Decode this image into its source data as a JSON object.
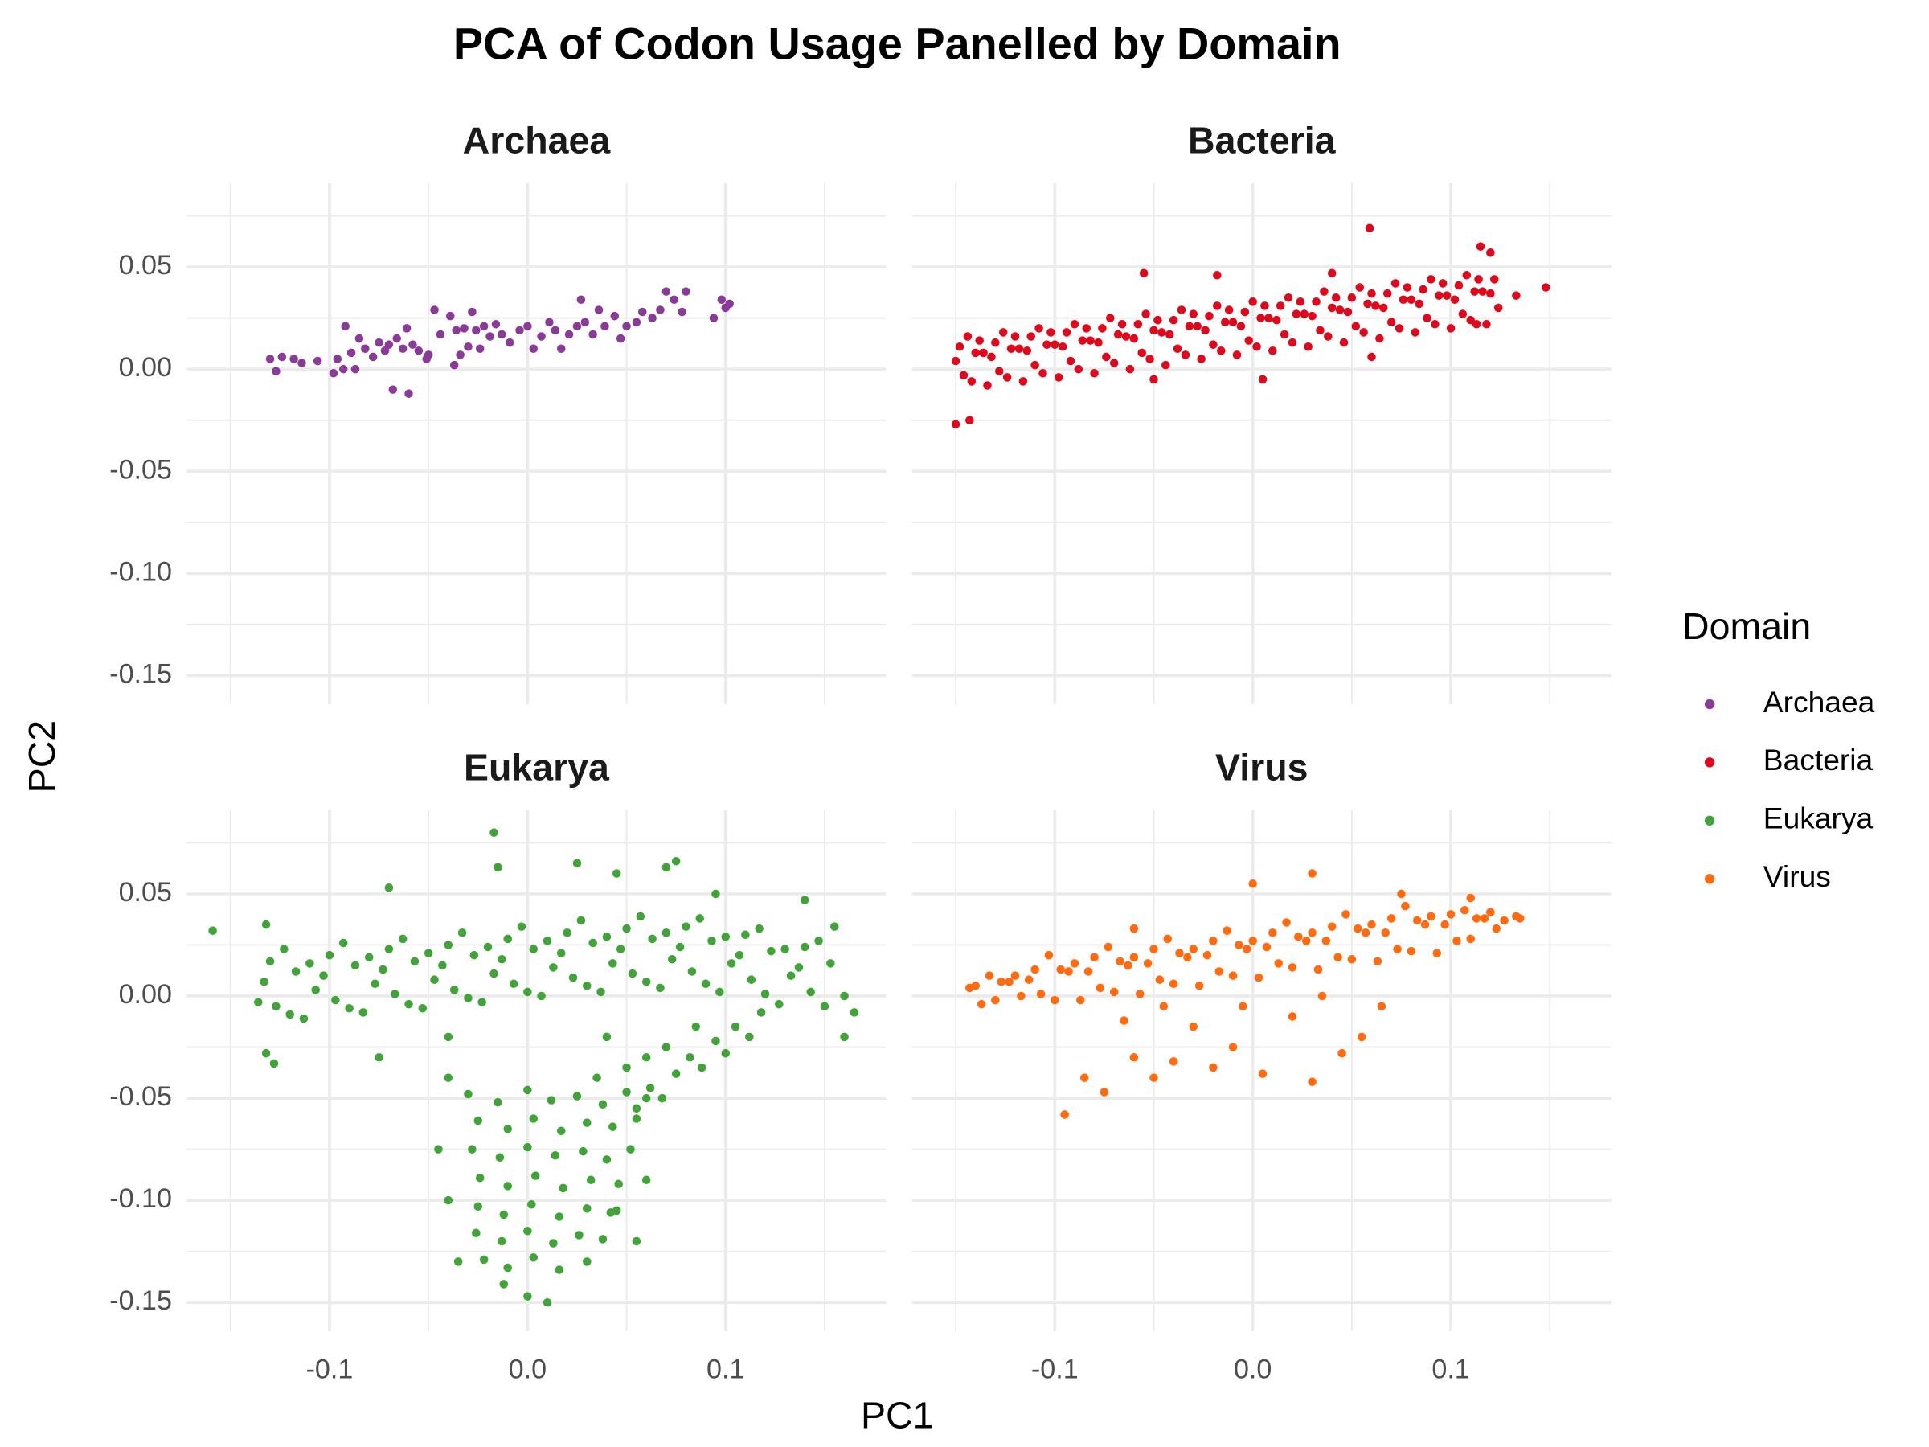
{
  "chart_data": {
    "type": "scatter",
    "title": "PCA of Codon Usage Panelled by Domain",
    "xlabel": "PC1",
    "ylabel": "PC2",
    "legend_title": "Domain",
    "legend_position": "right",
    "grid": true,
    "xlim": [
      -0.172,
      0.181
    ],
    "ylim": [
      -0.164,
      0.091
    ],
    "xticks": [
      -0.1,
      {
        "value": 0,
        "label": "0.0"
      },
      0.1
    ],
    "yticks": [
      -0.15,
      {
        "value": -0.1,
        "label": "-0.10"
      },
      -0.05,
      {
        "value": 0,
        "label": "0.00"
      },
      0.05
    ],
    "minor_xticks": [
      -0.15,
      -0.05,
      0.05,
      0.15
    ],
    "minor_yticks": [
      -0.125,
      -0.075,
      -0.025,
      0.025,
      0.075
    ],
    "series": [
      {
        "name": "Archaea",
        "color": "#8A3B97",
        "x": [
          -0.13,
          -0.127,
          -0.124,
          -0.118,
          -0.114,
          -0.106,
          -0.098,
          -0.096,
          -0.092,
          -0.093,
          -0.089,
          -0.087,
          -0.085,
          -0.082,
          -0.078,
          -0.075,
          -0.072,
          -0.07,
          -0.068,
          -0.066,
          -0.063,
          -0.061,
          -0.06,
          -0.058,
          -0.055,
          -0.051,
          -0.05,
          -0.047,
          -0.044,
          -0.039,
          -0.037,
          -0.036,
          -0.034,
          -0.032,
          -0.03,
          -0.028,
          -0.026,
          -0.024,
          -0.022,
          -0.019,
          -0.016,
          -0.013,
          -0.009,
          -0.004,
          0.0,
          0.003,
          0.007,
          0.011,
          0.014,
          0.017,
          0.021,
          0.025,
          0.027,
          0.029,
          0.033,
          0.036,
          0.039,
          0.044,
          0.047,
          0.05,
          0.055,
          0.058,
          0.063,
          0.067,
          0.07,
          0.074,
          0.078,
          0.08,
          0.094,
          0.098,
          0.1,
          0.102
        ],
        "y": [
          0.005,
          -0.001,
          0.006,
          0.005,
          0.003,
          0.004,
          -0.002,
          0.005,
          0.021,
          0.0,
          0.008,
          0.0,
          0.015,
          0.01,
          0.006,
          0.013,
          0.009,
          0.012,
          -0.01,
          0.015,
          0.01,
          0.02,
          -0.012,
          0.012,
          0.009,
          0.005,
          0.007,
          0.029,
          0.017,
          0.026,
          0.002,
          0.019,
          0.007,
          0.02,
          0.011,
          0.028,
          0.019,
          0.01,
          0.021,
          0.016,
          0.022,
          0.017,
          0.013,
          0.019,
          0.021,
          0.01,
          0.016,
          0.023,
          0.019,
          0.01,
          0.017,
          0.021,
          0.034,
          0.023,
          0.017,
          0.029,
          0.021,
          0.026,
          0.015,
          0.021,
          0.023,
          0.028,
          0.025,
          0.029,
          0.038,
          0.034,
          0.028,
          0.038,
          0.025,
          0.034,
          0.03,
          0.032
        ]
      },
      {
        "name": "Bacteria",
        "color": "#DD0A1E",
        "x": [
          -0.148,
          -0.146,
          -0.15,
          -0.142,
          -0.14,
          -0.144,
          -0.136,
          -0.134,
          -0.138,
          -0.13,
          -0.128,
          -0.132,
          -0.124,
          -0.122,
          -0.126,
          -0.118,
          -0.116,
          -0.12,
          -0.112,
          -0.11,
          -0.114,
          -0.106,
          -0.104,
          -0.108,
          -0.1,
          -0.098,
          -0.102,
          -0.094,
          -0.092,
          -0.096,
          -0.088,
          -0.086,
          -0.09,
          -0.082,
          -0.08,
          -0.084,
          -0.076,
          -0.074,
          -0.078,
          -0.07,
          -0.068,
          -0.072,
          -0.064,
          -0.062,
          -0.066,
          -0.058,
          -0.056,
          -0.06,
          -0.052,
          -0.05,
          -0.054,
          -0.046,
          -0.044,
          -0.048,
          -0.04,
          -0.038,
          -0.042,
          -0.034,
          -0.032,
          -0.036,
          -0.028,
          -0.026,
          -0.03,
          -0.022,
          -0.02,
          -0.024,
          -0.016,
          -0.014,
          -0.018,
          -0.01,
          -0.008,
          -0.012,
          -0.004,
          -0.002,
          -0.006,
          0.002,
          0.004,
          0.0,
          0.008,
          0.01,
          0.006,
          0.014,
          0.016,
          0.012,
          0.02,
          0.022,
          0.018,
          0.026,
          0.028,
          0.024,
          0.032,
          0.034,
          0.03,
          0.038,
          0.04,
          0.036,
          0.044,
          0.046,
          0.042,
          0.05,
          0.052,
          0.048,
          0.056,
          0.058,
          0.054,
          0.062,
          0.064,
          0.06,
          0.068,
          0.07,
          0.066,
          0.074,
          0.076,
          0.072,
          0.08,
          0.082,
          0.078,
          0.086,
          0.088,
          0.084,
          0.092,
          0.094,
          0.09,
          0.098,
          0.1,
          0.096,
          0.104,
          0.106,
          0.102,
          0.11,
          0.112,
          0.108,
          0.116,
          0.118,
          0.114,
          0.122,
          0.124,
          0.12,
          0.059,
          0.148,
          0.133,
          -0.15,
          -0.143,
          -0.055,
          0.115,
          0.12,
          0.04,
          0.113,
          -0.018,
          0.06,
          -0.05,
          0.005
        ],
        "y": [
          0.011,
          -0.003,
          0.004,
          -0.006,
          0.008,
          0.016,
          0.008,
          -0.008,
          0.014,
          0.013,
          -0.001,
          0.006,
          -0.004,
          0.01,
          0.018,
          0.01,
          -0.006,
          0.016,
          0.016,
          0.002,
          0.009,
          -0.002,
          0.012,
          0.02,
          0.012,
          -0.004,
          0.018,
          0.018,
          0.004,
          0.011,
          0.0,
          0.014,
          0.022,
          0.014,
          -0.002,
          0.02,
          0.02,
          0.006,
          0.013,
          0.003,
          0.017,
          0.025,
          0.016,
          0.0,
          0.022,
          0.022,
          0.008,
          0.015,
          0.005,
          0.019,
          0.027,
          0.018,
          0.002,
          0.024,
          0.024,
          0.01,
          0.017,
          0.007,
          0.021,
          0.029,
          0.021,
          0.005,
          0.027,
          0.026,
          0.012,
          0.019,
          0.009,
          0.023,
          0.031,
          0.023,
          0.007,
          0.029,
          0.028,
          0.014,
          0.021,
          0.011,
          0.025,
          0.033,
          0.025,
          0.009,
          0.031,
          0.031,
          0.017,
          0.024,
          0.013,
          0.027,
          0.035,
          0.027,
          0.011,
          0.033,
          0.033,
          0.019,
          0.026,
          0.016,
          0.03,
          0.038,
          0.029,
          0.013,
          0.035,
          0.035,
          0.021,
          0.028,
          0.018,
          0.032,
          0.04,
          0.031,
          0.015,
          0.037,
          0.037,
          0.023,
          0.03,
          0.02,
          0.034,
          0.042,
          0.034,
          0.018,
          0.04,
          0.039,
          0.025,
          0.032,
          0.022,
          0.036,
          0.044,
          0.036,
          0.02,
          0.042,
          0.041,
          0.027,
          0.034,
          0.024,
          0.038,
          0.046,
          0.038,
          0.022,
          0.044,
          0.044,
          0.03,
          0.037,
          0.069,
          0.04,
          0.036,
          -0.027,
          -0.025,
          0.047,
          0.06,
          0.057,
          0.047,
          0.022,
          0.046,
          0.006,
          -0.005,
          -0.005
        ]
      },
      {
        "name": "Eukarya",
        "color": "#43A33B",
        "x": [
          -0.13,
          -0.127,
          -0.133,
          -0.12,
          -0.117,
          -0.123,
          -0.11,
          -0.107,
          -0.113,
          -0.1,
          -0.097,
          -0.103,
          -0.09,
          -0.087,
          -0.093,
          -0.08,
          -0.077,
          -0.083,
          -0.07,
          -0.067,
          -0.073,
          -0.06,
          -0.057,
          -0.063,
          -0.05,
          -0.047,
          -0.053,
          -0.04,
          -0.037,
          -0.043,
          -0.03,
          -0.027,
          -0.033,
          -0.02,
          -0.017,
          -0.023,
          -0.01,
          -0.007,
          -0.013,
          0.0,
          0.003,
          -0.003,
          0.01,
          0.013,
          0.007,
          0.02,
          0.023,
          0.017,
          0.03,
          0.033,
          0.027,
          0.04,
          0.043,
          0.037,
          0.05,
          0.053,
          0.047,
          0.06,
          0.063,
          0.057,
          0.07,
          0.073,
          0.067,
          0.08,
          0.083,
          0.077,
          0.09,
          0.093,
          0.087,
          0.1,
          0.103,
          0.097,
          0.11,
          0.113,
          0.107,
          0.12,
          0.123,
          0.117,
          0.13,
          0.133,
          0.127,
          0.14,
          0.143,
          0.137,
          0.15,
          0.153,
          0.147,
          -0.159,
          -0.132,
          -0.136,
          -0.128,
          -0.132,
          -0.017,
          0.025,
          0.075,
          0.07,
          -0.015,
          0.14,
          0.165,
          0.16,
          -0.07,
          0.045,
          0.155,
          0.16,
          -0.075,
          -0.04,
          0.095,
          -0.03,
          -0.015,
          0.0,
          0.012,
          0.025,
          0.038,
          0.05,
          0.06,
          -0.025,
          -0.01,
          0.003,
          0.017,
          0.03,
          0.043,
          0.055,
          -0.028,
          -0.014,
          0.0,
          0.014,
          0.028,
          0.04,
          0.052,
          -0.024,
          -0.01,
          0.004,
          0.018,
          0.032,
          0.046,
          -0.025,
          -0.012,
          0.002,
          0.016,
          0.03,
          0.042,
          -0.026,
          -0.013,
          0.0,
          0.013,
          0.026,
          0.038,
          -0.022,
          -0.01,
          0.003,
          0.016,
          0.03,
          -0.012,
          0.0,
          0.01,
          0.055,
          0.062,
          0.068,
          0.075,
          0.082,
          0.088,
          0.095,
          0.1,
          0.105,
          0.112,
          0.118,
          0.07,
          0.085,
          0.06,
          0.05,
          0.04,
          0.035,
          0.045,
          0.055,
          0.06,
          -0.045,
          -0.04,
          -0.035,
          -0.04
        ],
        "y": [
          0.017,
          -0.005,
          0.007,
          -0.009,
          0.012,
          0.023,
          0.016,
          0.003,
          -0.011,
          0.02,
          -0.002,
          0.01,
          -0.006,
          0.015,
          0.026,
          0.019,
          0.006,
          -0.008,
          0.023,
          0.001,
          0.013,
          -0.004,
          0.017,
          0.028,
          0.021,
          0.008,
          -0.006,
          0.025,
          0.003,
          0.015,
          -0.001,
          0.02,
          0.031,
          0.024,
          0.011,
          -0.003,
          0.028,
          0.006,
          0.018,
          0.002,
          0.023,
          0.034,
          0.027,
          0.014,
          0.0,
          0.031,
          0.009,
          0.021,
          0.005,
          0.026,
          0.037,
          0.029,
          0.016,
          0.002,
          0.033,
          0.011,
          0.023,
          0.007,
          0.028,
          0.039,
          0.031,
          0.018,
          0.004,
          0.034,
          0.012,
          0.024,
          0.006,
          0.027,
          0.038,
          0.029,
          0.016,
          0.002,
          0.03,
          0.008,
          0.02,
          0.001,
          0.022,
          0.033,
          0.023,
          0.01,
          -0.004,
          0.024,
          0.002,
          0.014,
          -0.005,
          0.016,
          0.027,
          0.032,
          0.035,
          -0.003,
          -0.033,
          -0.028,
          0.08,
          0.065,
          0.066,
          0.063,
          0.063,
          0.047,
          -0.008,
          -0.02,
          0.053,
          0.06,
          0.034,
          0.0,
          -0.03,
          -0.02,
          0.05,
          -0.048,
          -0.052,
          -0.046,
          -0.051,
          -0.049,
          -0.053,
          -0.047,
          -0.05,
          -0.061,
          -0.065,
          -0.06,
          -0.066,
          -0.062,
          -0.064,
          -0.06,
          -0.075,
          -0.079,
          -0.074,
          -0.078,
          -0.076,
          -0.08,
          -0.075,
          -0.089,
          -0.093,
          -0.088,
          -0.094,
          -0.09,
          -0.092,
          -0.103,
          -0.107,
          -0.102,
          -0.108,
          -0.104,
          -0.106,
          -0.116,
          -0.12,
          -0.115,
          -0.121,
          -0.117,
          -0.119,
          -0.129,
          -0.133,
          -0.128,
          -0.134,
          -0.13,
          -0.141,
          -0.147,
          -0.15,
          -0.055,
          -0.045,
          -0.05,
          -0.038,
          -0.03,
          -0.035,
          -0.022,
          -0.028,
          -0.015,
          -0.02,
          -0.008,
          -0.025,
          -0.015,
          -0.03,
          -0.035,
          -0.02,
          -0.04,
          -0.105,
          -0.12,
          -0.09,
          -0.075,
          -0.1,
          -0.13,
          -0.04
        ]
      },
      {
        "name": "Virus",
        "color": "#FF6B10",
        "x": [
          -0.14,
          -0.137,
          -0.143,
          -0.13,
          -0.127,
          -0.133,
          -0.12,
          -0.117,
          -0.123,
          -0.11,
          -0.107,
          -0.113,
          -0.1,
          -0.097,
          -0.103,
          -0.09,
          -0.087,
          -0.093,
          -0.08,
          -0.077,
          -0.083,
          -0.07,
          -0.067,
          -0.073,
          -0.06,
          -0.057,
          -0.063,
          -0.05,
          -0.047,
          -0.053,
          -0.04,
          -0.037,
          -0.043,
          -0.03,
          -0.027,
          -0.033,
          -0.02,
          -0.017,
          -0.023,
          -0.01,
          -0.007,
          -0.013,
          0.0,
          0.003,
          -0.003,
          0.01,
          0.013,
          0.007,
          0.02,
          0.023,
          0.017,
          0.03,
          0.033,
          0.027,
          0.04,
          0.043,
          0.037,
          0.05,
          0.053,
          0.047,
          0.06,
          0.063,
          0.057,
          0.07,
          0.073,
          0.067,
          0.08,
          0.083,
          0.077,
          0.09,
          0.093,
          0.087,
          0.1,
          0.103,
          0.097,
          0.11,
          0.113,
          0.107,
          0.12,
          0.123,
          0.117,
          0.133,
          0.135,
          0.127,
          -0.095,
          -0.085,
          -0.075,
          -0.06,
          -0.05,
          -0.04,
          -0.02,
          -0.01,
          0.005,
          0.03,
          0.045,
          0.055,
          -0.03,
          -0.065,
          0.02,
          0.0,
          0.03,
          0.075,
          0.11,
          -0.06,
          0.065,
          -0.005,
          -0.045,
          0.035
        ],
        "y": [
          0.005,
          -0.004,
          0.004,
          -0.002,
          0.007,
          0.01,
          0.01,
          0.0,
          0.007,
          0.013,
          0.001,
          0.008,
          -0.002,
          0.013,
          0.02,
          0.016,
          -0.002,
          0.012,
          0.019,
          0.004,
          0.012,
          0.002,
          0.017,
          0.024,
          0.019,
          0.001,
          0.015,
          0.023,
          0.008,
          0.016,
          0.006,
          0.021,
          0.028,
          0.023,
          0.005,
          0.019,
          0.027,
          0.012,
          0.02,
          0.01,
          0.025,
          0.032,
          0.027,
          0.009,
          0.023,
          0.031,
          0.016,
          0.024,
          0.014,
          0.029,
          0.036,
          0.031,
          0.013,
          0.027,
          0.034,
          0.019,
          0.027,
          0.018,
          0.033,
          0.04,
          0.035,
          0.017,
          0.031,
          0.038,
          0.023,
          0.031,
          0.022,
          0.037,
          0.044,
          0.039,
          0.021,
          0.035,
          0.04,
          0.027,
          0.035,
          0.028,
          0.038,
          0.042,
          0.041,
          0.033,
          0.038,
          0.039,
          0.038,
          0.037,
          -0.058,
          -0.04,
          -0.047,
          -0.03,
          -0.04,
          -0.032,
          -0.035,
          -0.025,
          -0.038,
          -0.042,
          -0.028,
          -0.02,
          -0.015,
          -0.012,
          -0.01,
          0.055,
          0.06,
          0.05,
          0.048,
          0.033,
          -0.005,
          -0.005,
          -0.005,
          0.0
        ]
      }
    ]
  }
}
